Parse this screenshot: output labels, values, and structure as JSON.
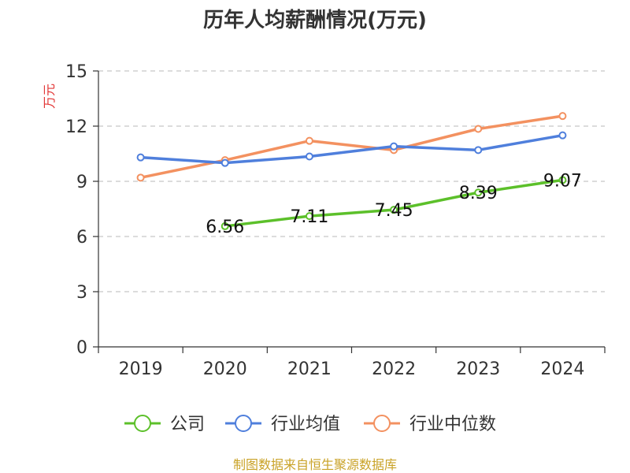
{
  "chart_data": {
    "type": "line",
    "title": "历年人均薪酬情况(万元)",
    "ylabel": "万元",
    "xlabel": "",
    "categories": [
      "2019",
      "2020",
      "2021",
      "2022",
      "2023",
      "2024"
    ],
    "ylim": [
      0,
      15
    ],
    "yticks": [
      0,
      3,
      6,
      9,
      12,
      15
    ],
    "grid": true,
    "legend_position": "bottom",
    "series": [
      {
        "name": "公司",
        "color": "#5cc02a",
        "values": [
          null,
          6.56,
          7.11,
          7.45,
          8.39,
          9.07
        ],
        "show_labels": true
      },
      {
        "name": "行业均值",
        "color": "#4f7fdc",
        "values": [
          10.3,
          10.0,
          10.35,
          10.9,
          10.7,
          11.5
        ],
        "show_labels": false
      },
      {
        "name": "行业中位数",
        "color": "#f39160",
        "values": [
          9.2,
          10.15,
          11.2,
          10.7,
          11.85,
          12.55
        ],
        "show_labels": false
      }
    ],
    "source": "制图数据来自恒生聚源数据库"
  }
}
